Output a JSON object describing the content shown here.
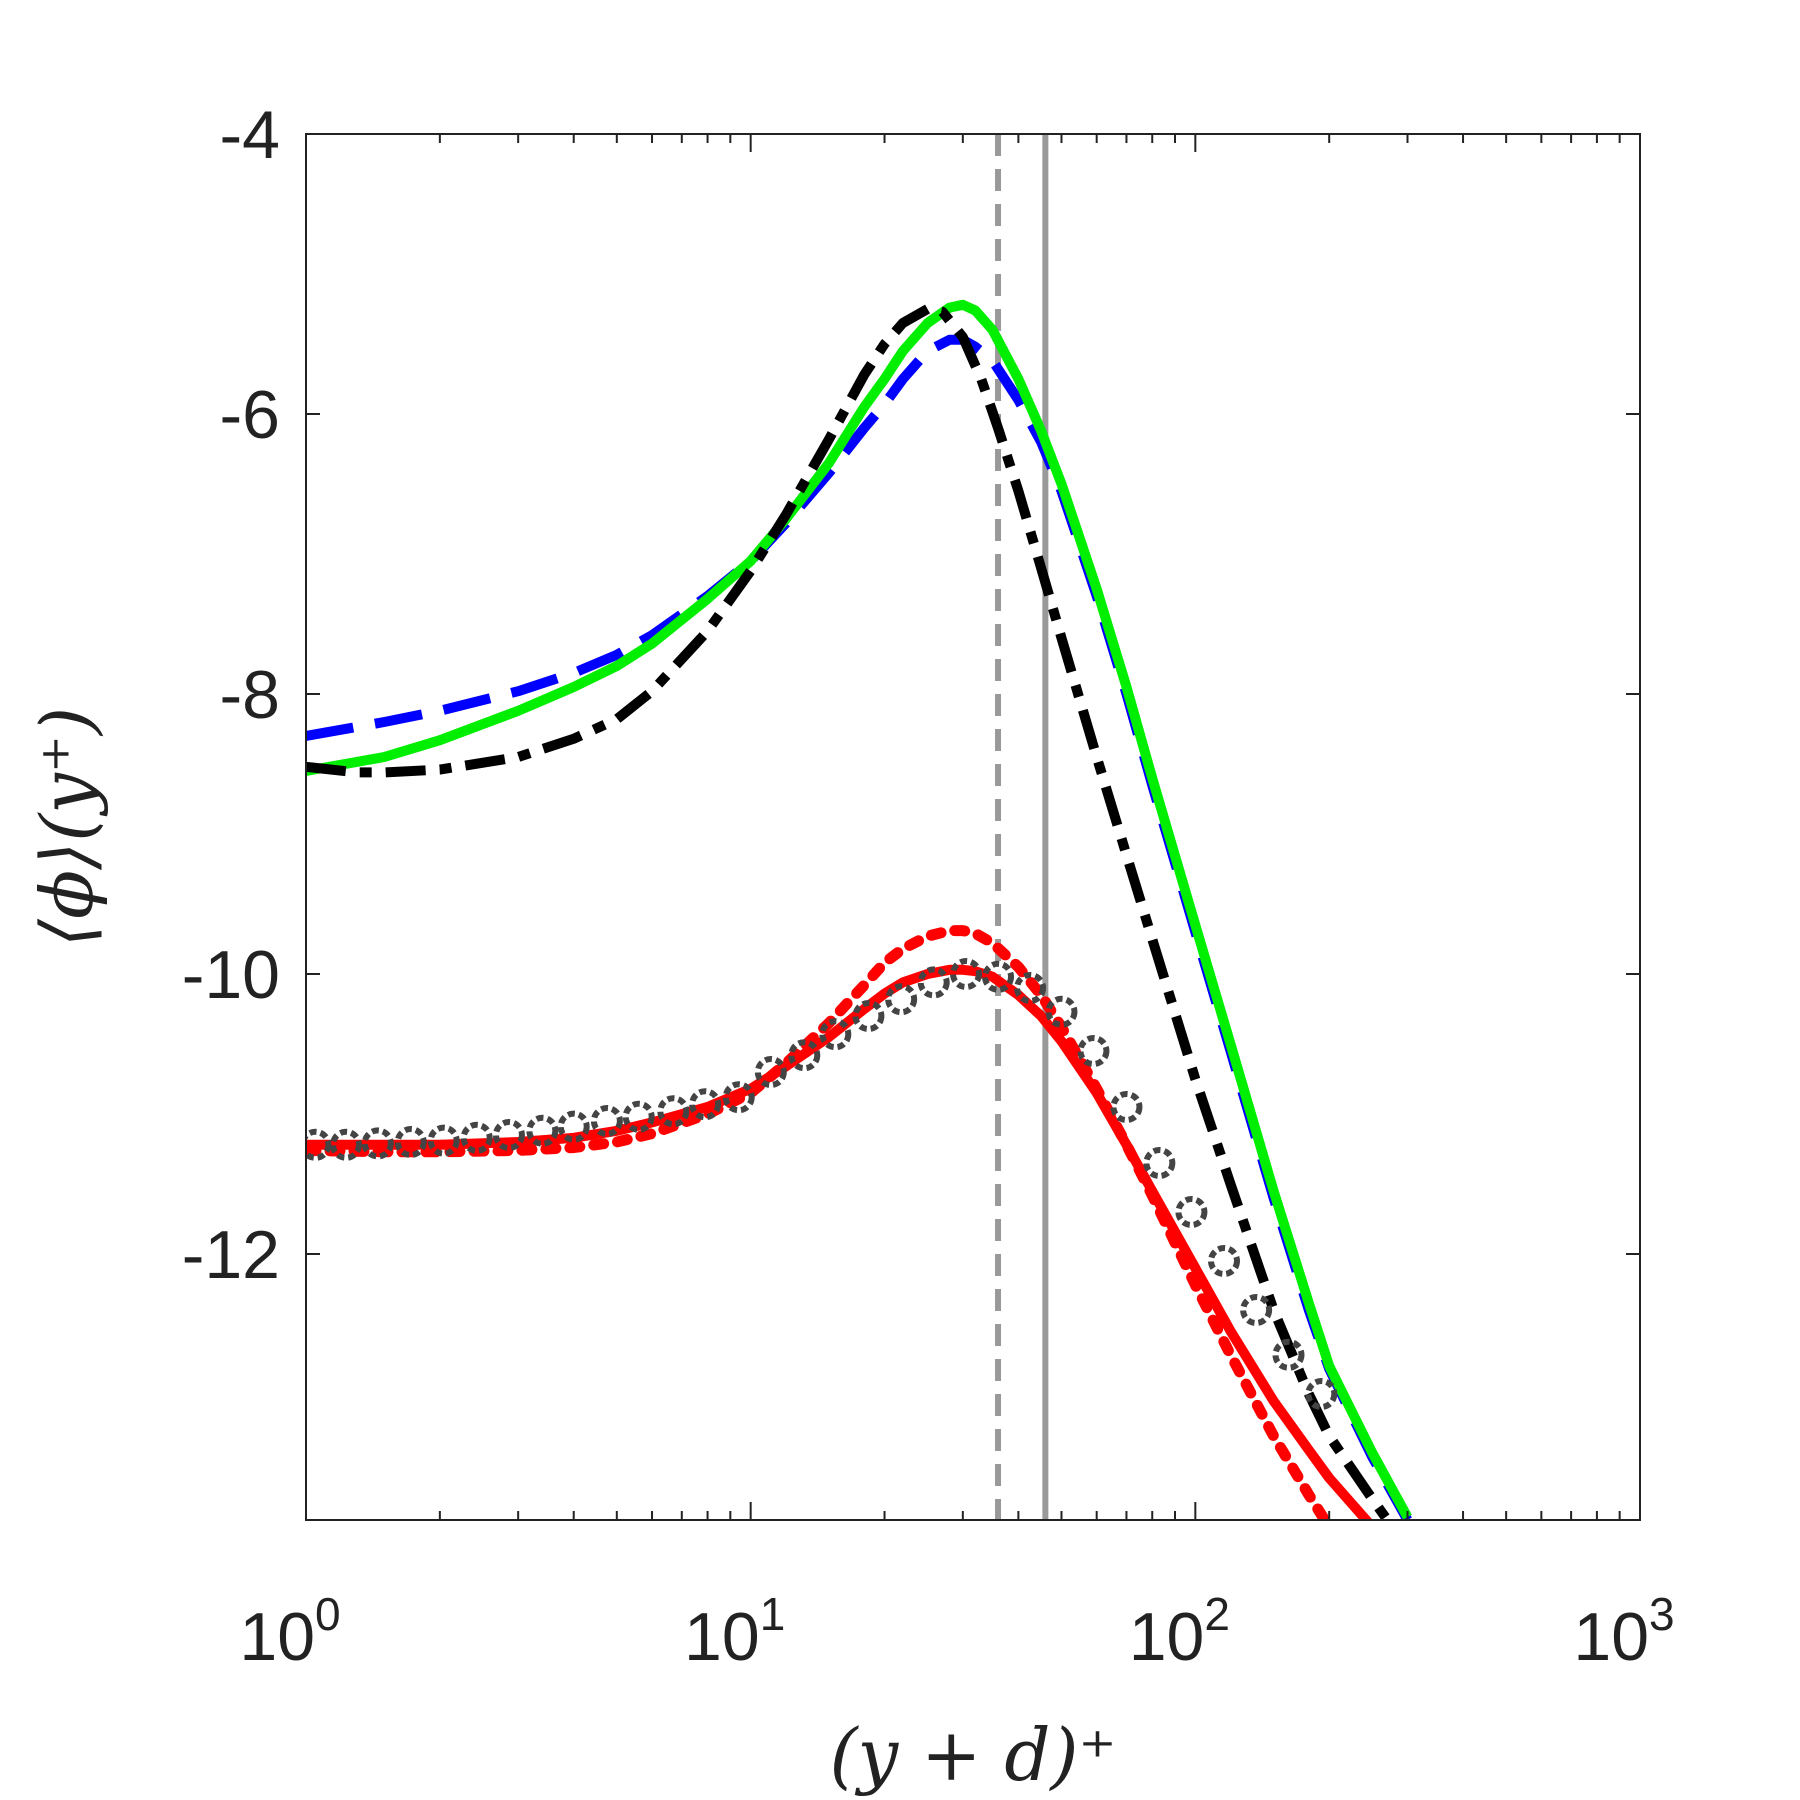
{
  "chart_data": {
    "type": "line",
    "xscale": "log",
    "xlabel": "(y + d)⁺",
    "ylabel": "⟨ϕ⟩(y⁺)",
    "xlim": [
      1,
      1000
    ],
    "ylim": [
      -13.9,
      -4
    ],
    "x_ticks": [
      {
        "value": 1,
        "base": "10",
        "exp": "0"
      },
      {
        "value": 10,
        "base": "10",
        "exp": "1"
      },
      {
        "value": 100,
        "base": "10",
        "exp": "2"
      },
      {
        "value": 1000,
        "base": "10",
        "exp": "3"
      }
    ],
    "y_ticks": [
      {
        "value": -4,
        "label": "-4"
      },
      {
        "value": -6,
        "label": "-6"
      },
      {
        "value": -8,
        "label": "-8"
      },
      {
        "value": -10,
        "label": "-10"
      },
      {
        "value": -12,
        "label": "-12"
      }
    ],
    "reference_lines": [
      {
        "name": "ref-dashed-gray",
        "x": 36,
        "color": "#999999",
        "dash": "dashed"
      },
      {
        "name": "ref-solid-gray",
        "x": 46,
        "color": "#999999",
        "dash": "solid"
      }
    ],
    "series": [
      {
        "name": "blue-dashed",
        "color": "#0000ff",
        "dash": "dashed",
        "x": [
          1,
          1.5,
          2,
          3,
          4,
          5,
          6,
          8,
          10,
          12,
          15,
          18,
          20,
          22,
          25,
          28,
          30,
          32,
          35,
          40,
          45,
          50,
          60,
          70,
          80,
          100,
          120,
          150,
          180,
          200,
          250,
          300
        ],
        "y": [
          -8.3,
          -8.2,
          -8.12,
          -7.98,
          -7.85,
          -7.72,
          -7.58,
          -7.3,
          -7.05,
          -6.78,
          -6.42,
          -6.1,
          -5.93,
          -5.75,
          -5.55,
          -5.47,
          -5.47,
          -5.52,
          -5.62,
          -5.9,
          -6.2,
          -6.55,
          -7.3,
          -8.0,
          -8.65,
          -9.7,
          -10.55,
          -11.6,
          -12.4,
          -12.82,
          -13.45,
          -13.9
        ]
      },
      {
        "name": "green-solid",
        "color": "#00ee00",
        "dash": "solid",
        "x": [
          1,
          1.5,
          2,
          3,
          4,
          5,
          6,
          8,
          10,
          12,
          15,
          18,
          20,
          22,
          25,
          28,
          30,
          32,
          35,
          40,
          45,
          50,
          60,
          70,
          80,
          100,
          120,
          150,
          180,
          200,
          250,
          300
        ],
        "y": [
          -8.55,
          -8.45,
          -8.33,
          -8.12,
          -7.95,
          -7.8,
          -7.64,
          -7.32,
          -7.05,
          -6.75,
          -6.35,
          -5.95,
          -5.75,
          -5.55,
          -5.35,
          -5.24,
          -5.22,
          -5.26,
          -5.4,
          -5.75,
          -6.12,
          -6.5,
          -7.25,
          -7.95,
          -8.6,
          -9.65,
          -10.5,
          -11.55,
          -12.35,
          -12.8,
          -13.42,
          -13.88
        ]
      },
      {
        "name": "black-dash-dot",
        "color": "#000000",
        "dash": "dashdot",
        "x": [
          1,
          1.3,
          1.5,
          2,
          3,
          4,
          5,
          6,
          8,
          10,
          12,
          15,
          18,
          20,
          22,
          25,
          27,
          30,
          33,
          36,
          40,
          45,
          50,
          60,
          70,
          80,
          100,
          120,
          150,
          180,
          200,
          250,
          300
        ],
        "y": [
          -8.52,
          -8.56,
          -8.56,
          -8.54,
          -8.45,
          -8.32,
          -8.18,
          -7.98,
          -7.55,
          -7.12,
          -6.72,
          -6.18,
          -5.72,
          -5.5,
          -5.35,
          -5.25,
          -5.27,
          -5.45,
          -5.75,
          -6.1,
          -6.55,
          -7.1,
          -7.6,
          -8.45,
          -9.15,
          -9.75,
          -10.75,
          -11.5,
          -12.4,
          -13.0,
          -13.3,
          -13.75,
          -14.1
        ]
      },
      {
        "name": "red-solid",
        "color": "#ff0000",
        "dash": "solid",
        "x": [
          1,
          1.5,
          2,
          3,
          4,
          5,
          6,
          8,
          10,
          12,
          15,
          18,
          20,
          22,
          25,
          28,
          30,
          32,
          35,
          40,
          45,
          50,
          60,
          70,
          80,
          100,
          120,
          150,
          180,
          200,
          250,
          300
        ],
        "y": [
          -11.22,
          -11.22,
          -11.22,
          -11.2,
          -11.17,
          -11.12,
          -11.06,
          -10.95,
          -10.82,
          -10.66,
          -10.45,
          -10.25,
          -10.14,
          -10.06,
          -10.0,
          -9.97,
          -9.97,
          -9.98,
          -10.02,
          -10.15,
          -10.3,
          -10.48,
          -10.85,
          -11.22,
          -11.55,
          -12.1,
          -12.55,
          -13.05,
          -13.4,
          -13.6,
          -13.95,
          -14.2
        ]
      },
      {
        "name": "red-dotted",
        "color": "#ff0000",
        "dash": "dotted",
        "x": [
          1,
          1.5,
          2,
          3,
          4,
          5,
          6,
          8,
          10,
          12,
          15,
          18,
          20,
          22,
          25,
          28,
          30,
          32,
          35,
          40,
          45,
          50,
          60,
          70,
          80,
          100,
          120,
          150,
          180,
          200,
          250,
          300
        ],
        "y": [
          -11.26,
          -11.27,
          -11.27,
          -11.26,
          -11.24,
          -11.2,
          -11.14,
          -11.0,
          -10.85,
          -10.64,
          -10.35,
          -10.08,
          -9.92,
          -9.82,
          -9.73,
          -9.69,
          -9.69,
          -9.71,
          -9.78,
          -9.95,
          -10.15,
          -10.38,
          -10.82,
          -11.22,
          -11.58,
          -12.22,
          -12.72,
          -13.3,
          -13.72,
          -13.95,
          -14.35,
          -14.6
        ]
      },
      {
        "name": "gray-circles",
        "color": "#444444",
        "dash": "markers",
        "x": [
          1.05,
          1.23,
          1.45,
          1.72,
          2.04,
          2.42,
          2.86,
          3.4,
          4.0,
          4.75,
          5.6,
          6.7,
          7.9,
          9.4,
          11.1,
          13.2,
          15.5,
          18.4,
          21.8,
          25.8,
          30.5,
          36.0,
          42.5,
          50.0,
          59.0,
          70.0,
          83.0,
          98.0,
          116,
          137,
          162,
          192
        ],
        "y": [
          -11.22,
          -11.22,
          -11.21,
          -11.2,
          -11.19,
          -11.17,
          -11.15,
          -11.12,
          -11.09,
          -11.05,
          -11.02,
          -10.98,
          -10.93,
          -10.88,
          -10.7,
          -10.58,
          -10.43,
          -10.3,
          -10.18,
          -10.06,
          -10.0,
          -10.02,
          -10.1,
          -10.27,
          -10.55,
          -10.95,
          -11.35,
          -11.7,
          -12.05,
          -12.4,
          -12.72,
          -13.0
        ]
      }
    ]
  }
}
